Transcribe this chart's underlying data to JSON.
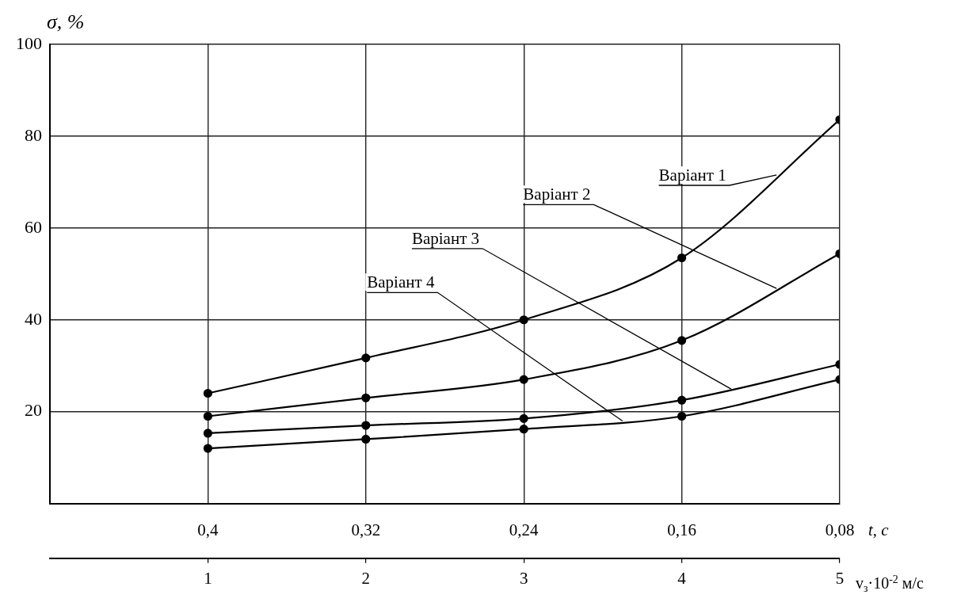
{
  "chart_data": {
    "type": "line",
    "ylabel": "σ, %",
    "xlabel": "t, c",
    "x2label": "v$_{з}$·10$^{-2}$ м/с",
    "x": [
      0.4,
      0.32,
      0.24,
      0.16,
      0.08
    ],
    "series": [
      {
        "name": "Варіант 1",
        "color": "#000000",
        "values": [
          24,
          31.7,
          40,
          53.5,
          83.6
        ]
      },
      {
        "name": "Варіант 2",
        "color": "#000000",
        "values": [
          19,
          23,
          27,
          35.5,
          54.4
        ]
      },
      {
        "name": "Варіант 3",
        "color": "#000000",
        "values": [
          15.3,
          17,
          18.5,
          22.5,
          30.3
        ]
      },
      {
        "name": "Варіант 4",
        "color": "#000000",
        "values": [
          12,
          14,
          16.2,
          19,
          27
        ]
      }
    ],
    "xlim": [
      0.48,
      0.08
    ],
    "xticks": [
      {
        "value": 0.4,
        "label": "0,4"
      },
      {
        "value": 0.32,
        "label": "0,32"
      },
      {
        "value": 0.24,
        "label": "0,24"
      },
      {
        "value": 0.16,
        "label": "0,16"
      },
      {
        "value": 0.08,
        "label": "0,08"
      }
    ],
    "x2lim": [
      0,
      5
    ],
    "x2ticks": [
      1,
      2,
      3,
      4,
      5
    ],
    "ylim": [
      0,
      100
    ],
    "yticks": [
      20,
      40,
      60,
      80,
      100
    ],
    "grid": true,
    "legend": false,
    "marker": "circle",
    "line_style": "solid"
  }
}
